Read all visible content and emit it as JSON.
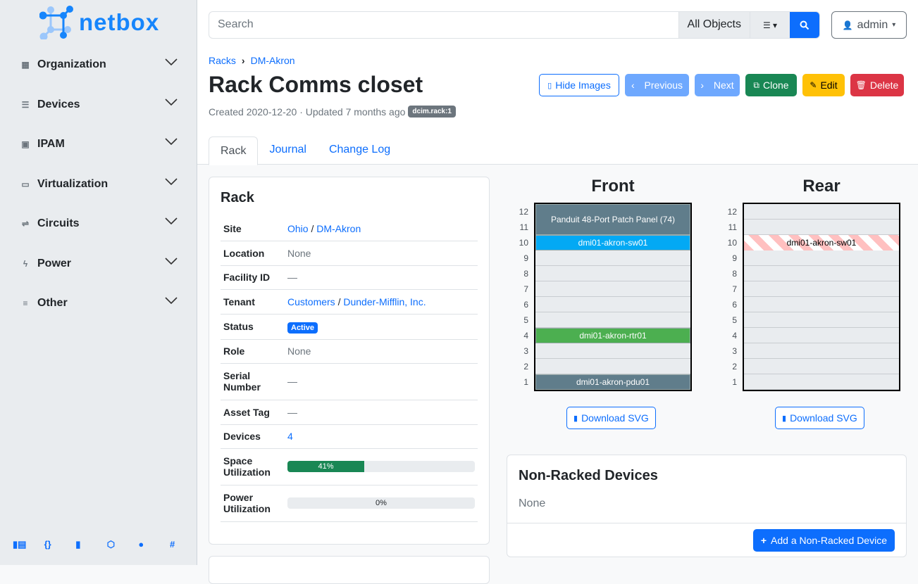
{
  "brand": {
    "name": "netbox"
  },
  "sidebar": {
    "items": [
      {
        "label": "Organization",
        "icon": "building-icon"
      },
      {
        "label": "Devices",
        "icon": "server-icon"
      },
      {
        "label": "IPAM",
        "icon": "ip-icon"
      },
      {
        "label": "Virtualization",
        "icon": "monitor-icon"
      },
      {
        "label": "Circuits",
        "icon": "circuit-icon"
      },
      {
        "label": "Power",
        "icon": "lightning-icon"
      },
      {
        "label": "Other",
        "icon": "list-icon"
      }
    ],
    "footer_icons": [
      "docs-icon",
      "api-icon",
      "book-icon",
      "graphql-icon",
      "github-icon",
      "slack-icon"
    ]
  },
  "search": {
    "placeholder": "Search",
    "scope": "All Objects"
  },
  "user": {
    "name": "admin"
  },
  "breadcrumb": [
    "Racks",
    "DM-Akron"
  ],
  "page": {
    "title": "Rack Comms closet",
    "meta": "Created 2020-12-20 · Updated 7 months ago",
    "tag": "dcim.rack:1"
  },
  "actions": {
    "hide_images": "Hide Images",
    "previous": "Previous",
    "next": "Next",
    "clone": "Clone",
    "edit": "Edit",
    "delete": "Delete"
  },
  "colors": {
    "primary": "#0d6efd",
    "success": "#198754",
    "warning": "#ffc107",
    "danger": "#dc3545"
  },
  "tabs": [
    "Rack",
    "Journal",
    "Change Log"
  ],
  "rack_card": {
    "title": "Rack",
    "rows": [
      {
        "key": "Site",
        "links": [
          "Ohio",
          "DM-Akron"
        ]
      },
      {
        "key": "Location",
        "value": "None"
      },
      {
        "key": "Facility ID",
        "value": "—"
      },
      {
        "key": "Tenant",
        "links": [
          "Customers",
          "Dunder-Mifflin, Inc."
        ]
      },
      {
        "key": "Status",
        "badge": "Active"
      },
      {
        "key": "Role",
        "value": "None"
      },
      {
        "key": "Serial Number",
        "value": "—"
      },
      {
        "key": "Asset Tag",
        "value": "—"
      },
      {
        "key": "Devices",
        "link": "4"
      },
      {
        "key": "Space Utilization",
        "percent": 41,
        "label": "41%"
      },
      {
        "key": "Power Utilization",
        "percent": 0,
        "label": "0%"
      }
    ]
  },
  "elevations": {
    "front_title": "Front",
    "rear_title": "Rear",
    "units": [
      12,
      11,
      10,
      9,
      8,
      7,
      6,
      5,
      4,
      3,
      2,
      1
    ],
    "front": [
      {
        "name": "Panduit 48-Port Patch Panel (74)",
        "top_u": 12,
        "height_u": 2,
        "color": "#607d8b"
      },
      {
        "name": "dmi01-akron-sw01",
        "top_u": 10,
        "height_u": 1,
        "color": "#03a9f4"
      },
      {
        "name": "dmi01-akron-rtr01",
        "top_u": 4,
        "height_u": 1,
        "color": "#4caf50"
      },
      {
        "name": "dmi01-akron-pdu01",
        "top_u": 1,
        "height_u": 1,
        "color": "#607d8b"
      }
    ],
    "rear": [
      {
        "name": "dmi01-akron-sw01",
        "top_u": 10,
        "height_u": 1,
        "color": "hatched"
      }
    ],
    "download": "Download SVG"
  },
  "non_racked": {
    "title": "Non-Racked Devices",
    "value": "None",
    "add": "Add a Non-Racked Device"
  }
}
